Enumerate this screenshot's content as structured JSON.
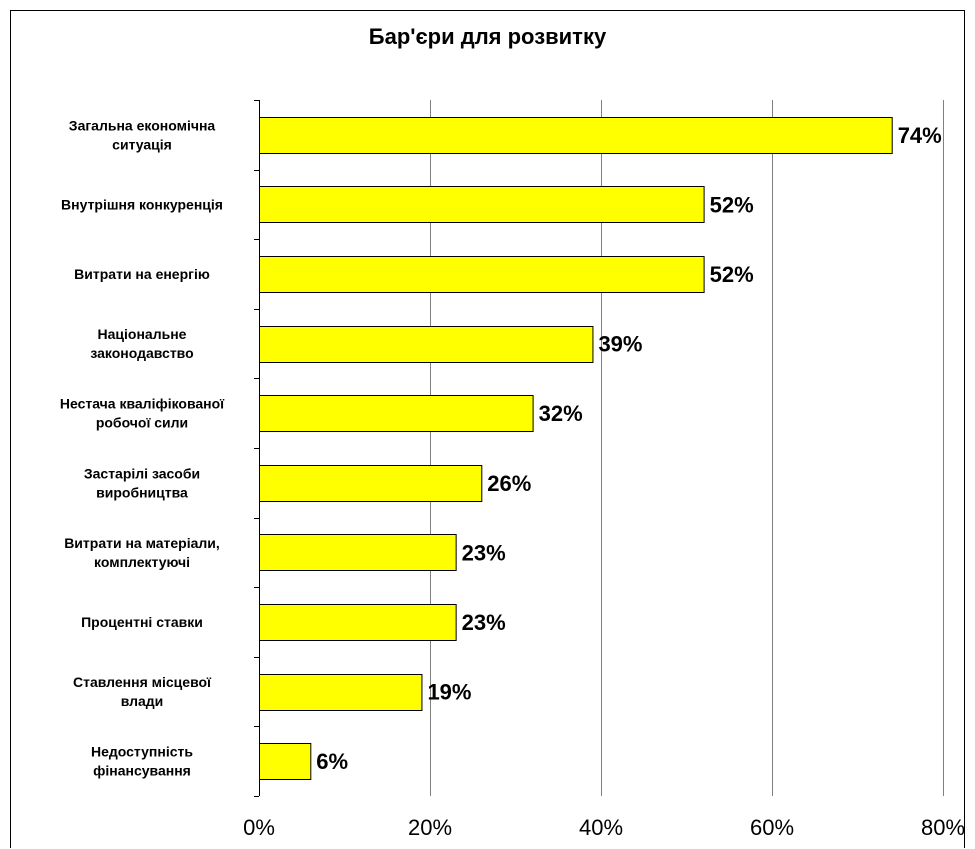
{
  "chart_data": {
    "type": "bar",
    "orientation": "horizontal",
    "title": "Бар'єри для розвитку",
    "categories": [
      [
        "Загальна економічна",
        "ситуація"
      ],
      [
        "Внутрішня конкуренція"
      ],
      [
        "Витрати на енергію"
      ],
      [
        "Національне",
        "законодавство"
      ],
      [
        "Нестача кваліфікованої",
        "робочої сили"
      ],
      [
        "Застарілі засоби",
        "виробництва"
      ],
      [
        "Витрати на матеріали,",
        "комплектуючі"
      ],
      [
        "Процентні ставки"
      ],
      [
        "Ставлення місцевої",
        "влади"
      ],
      [
        "Недоступність",
        "фінансування"
      ]
    ],
    "values": [
      74,
      52,
      52,
      39,
      32,
      26,
      23,
      23,
      19,
      6
    ],
    "value_labels": [
      "74%",
      "52%",
      "52%",
      "39%",
      "32%",
      "26%",
      "23%",
      "23%",
      "19%",
      "6%"
    ],
    "xlim": [
      0,
      80
    ],
    "xticks": [
      0,
      20,
      40,
      60,
      80
    ],
    "xtick_labels": [
      "0%",
      "20%",
      "40%",
      "60%",
      "80%"
    ],
    "grid": true,
    "colors": {
      "bar_fill": "#ffff00",
      "bar_stroke": "#000000",
      "grid": "#808080"
    }
  }
}
